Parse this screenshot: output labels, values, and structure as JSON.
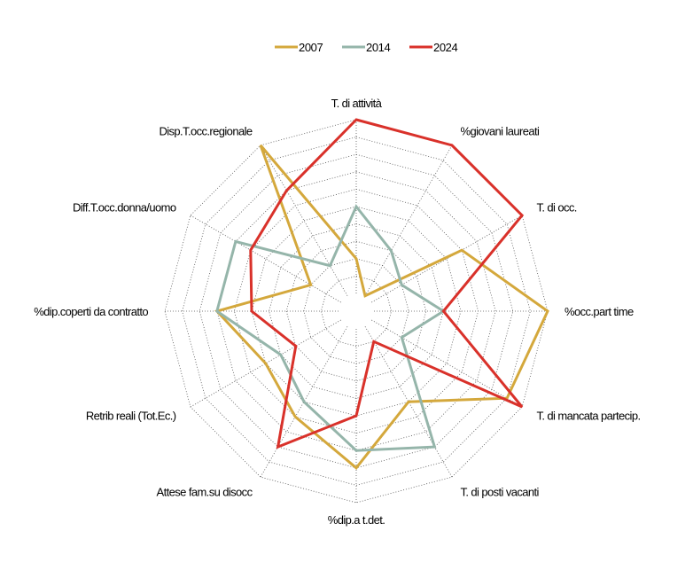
{
  "chart_data": {
    "type": "radar",
    "categories": [
      "T. di attività",
      "%giovani laureati",
      "T. di occ.",
      "%occ.part time",
      "T. di mancata partecip.",
      "T. di posti vacanti",
      "%dip.a t.det.",
      "Attese fam.su disocc",
      "Retrib reali (Tot.Ec.)",
      "%dip.coperti da contratto",
      "Diff.T.occ.donna/uomo",
      "Disp.T.occ.regionale"
    ],
    "series": [
      {
        "name": "2007",
        "color": "#d4a83c",
        "values": [
          0.2,
          0.0,
          0.6,
          1.0,
          0.9,
          0.5,
          0.8,
          0.6,
          0.5,
          0.7,
          0.2,
          1.0
        ]
      },
      {
        "name": "2014",
        "color": "#95b5aa",
        "values": [
          0.5,
          0.3,
          0.2,
          0.4,
          0.2,
          0.8,
          0.7,
          0.5,
          0.4,
          0.7,
          0.7,
          0.2
        ]
      },
      {
        "name": "2024",
        "color": "#d9312a",
        "values": [
          1.0,
          1.0,
          1.0,
          0.4,
          1.0,
          0.1,
          0.5,
          0.8,
          0.3,
          0.5,
          0.6,
          0.7
        ]
      }
    ],
    "rlim": [
      0,
      1
    ],
    "rings": 10,
    "grid": true,
    "legend": "top-center"
  }
}
